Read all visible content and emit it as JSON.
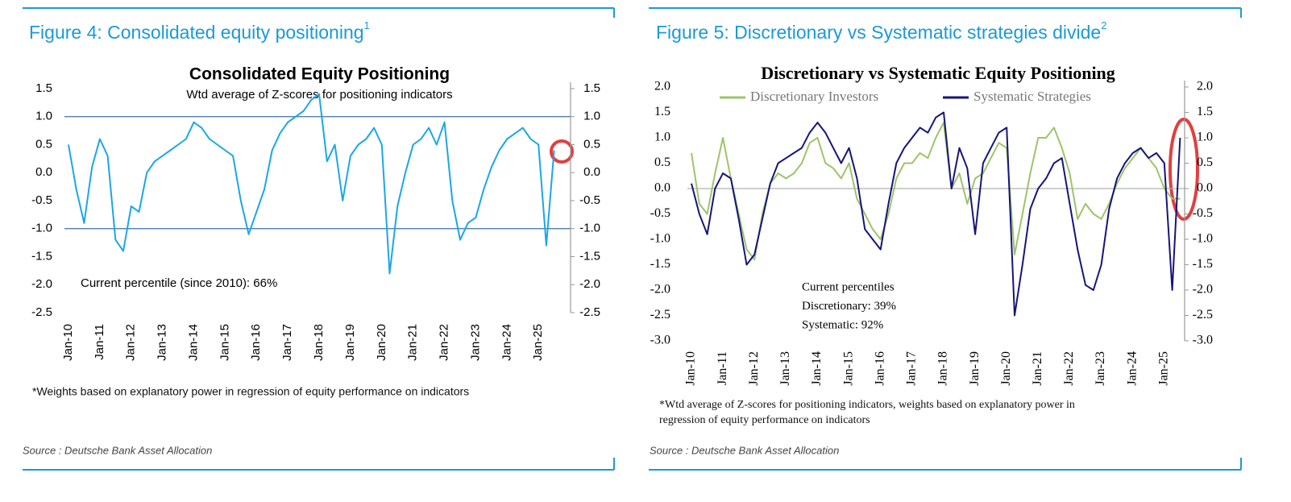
{
  "figures": [
    {
      "heading": "Figure 4: Consolidated equity positioning",
      "heading_sup": "1",
      "footnote": "*Weights based on explanatory power in regression of equity performance on indicators",
      "source": "Source : Deutsche Bank Asset Allocation"
    },
    {
      "heading": "Figure 5: Discretionary vs Systematic strategies divide",
      "heading_sup": "2",
      "footnote": [
        "*Wtd average of Z-scores for positioning indicators, weights based on explanatory power in",
        "regression of equity performance on indicators"
      ],
      "source": "Source : Deutsche Bank Asset Allocation"
    }
  ],
  "chart_data": [
    {
      "type": "line",
      "title": "Consolidated Equity Positioning",
      "subtitle": "Wtd average of Z-scores for positioning indicators",
      "annotations": [
        "Current percentile (since 2010): 66%"
      ],
      "categories": [
        "Jan-10",
        null,
        null,
        null,
        "Jan-11",
        null,
        null,
        null,
        "Jan-12",
        null,
        null,
        null,
        "Jan-13",
        null,
        null,
        null,
        "Jan-14",
        null,
        null,
        null,
        "Jan-15",
        null,
        null,
        null,
        "Jan-16",
        null,
        null,
        null,
        "Jan-17",
        null,
        null,
        null,
        "Jan-18",
        null,
        null,
        null,
        "Jan-19",
        null,
        null,
        null,
        "Jan-20",
        null,
        null,
        null,
        "Jan-21",
        null,
        null,
        null,
        "Jan-22",
        null,
        null,
        null,
        "Jan-23",
        null,
        null,
        null,
        "Jan-24",
        null,
        null,
        null,
        "Jan-25",
        null,
        null
      ],
      "values": [
        0.5,
        -0.3,
        -0.9,
        0.1,
        0.6,
        0.3,
        -1.2,
        -1.4,
        -0.6,
        -0.7,
        0.0,
        0.2,
        0.3,
        0.4,
        0.5,
        0.6,
        0.9,
        0.8,
        0.6,
        0.5,
        0.4,
        0.3,
        -0.5,
        -1.1,
        -0.7,
        -0.3,
        0.4,
        0.7,
        0.9,
        1.0,
        1.1,
        1.3,
        1.4,
        0.2,
        0.5,
        -0.5,
        0.3,
        0.5,
        0.6,
        0.8,
        0.5,
        -1.8,
        -0.6,
        0.0,
        0.5,
        0.6,
        0.8,
        0.5,
        0.9,
        -0.5,
        -1.2,
        -0.9,
        -0.8,
        -0.3,
        0.1,
        0.4,
        0.6,
        0.7,
        0.8,
        0.6,
        0.5,
        -1.3,
        0.4
      ],
      "color": "#1aa7e6",
      "ylim": [
        -2.5,
        1.5
      ],
      "yticks": [
        1.5,
        {
          "value": 1,
          "label": "1.0"
        },
        0.5,
        {
          "value": 0,
          "label": "0.0"
        },
        -0.5,
        {
          "value": -1,
          "label": "-1.0"
        },
        -1.5,
        {
          "value": -2,
          "label": "-2.0"
        },
        -2.5
      ],
      "y2lim": [
        -2.5,
        1.5
      ],
      "y2ticks": [
        1.5,
        {
          "value": 1,
          "label": "1.0"
        },
        0.5,
        {
          "value": 0,
          "label": "0.0"
        },
        -0.5,
        {
          "value": -1,
          "label": "-1.0"
        },
        -1.5,
        {
          "value": -2,
          "label": "-2.0"
        },
        -2.5
      ],
      "gridlines": [
        1,
        -1
      ],
      "gridline_color": "#3d6fa8"
    },
    {
      "type": "line",
      "title": "Discretionary  vs Systematic Equity Positioning",
      "annotations": [
        "Current percentiles",
        "Discretionary: 39%",
        "Systematic: 92%"
      ],
      "categories": [
        "Jan-10",
        null,
        null,
        null,
        "Jan-11",
        null,
        null,
        null,
        "Jan-12",
        null,
        null,
        null,
        "Jan-13",
        null,
        null,
        null,
        "Jan-14",
        null,
        null,
        null,
        "Jan-15",
        null,
        null,
        null,
        "Jan-16",
        null,
        null,
        null,
        "Jan-17",
        null,
        null,
        null,
        "Jan-18",
        null,
        null,
        null,
        "Jan-19",
        null,
        null,
        null,
        "Jan-20",
        null,
        null,
        null,
        "Jan-21",
        null,
        null,
        null,
        "Jan-22",
        null,
        null,
        null,
        "Jan-23",
        null,
        null,
        null,
        "Jan-24",
        null,
        null,
        null,
        "Jan-25",
        null,
        null
      ],
      "series": [
        {
          "name": "Discretionary Investors",
          "color": "#9dc46a",
          "values": [
            0.7,
            -0.3,
            -0.5,
            0.3,
            1.0,
            0.2,
            -0.5,
            -1.2,
            -1.4,
            -0.5,
            0.1,
            0.3,
            0.2,
            0.3,
            0.5,
            0.9,
            1.0,
            0.5,
            0.4,
            0.2,
            0.5,
            -0.2,
            -0.5,
            -0.8,
            -1.0,
            -0.5,
            0.2,
            0.5,
            0.5,
            0.7,
            0.6,
            1.0,
            1.3,
            0.0,
            0.3,
            -0.3,
            0.2,
            0.3,
            0.6,
            0.9,
            0.8,
            -1.3,
            -0.5,
            0.3,
            1.0,
            1.0,
            1.2,
            0.8,
            0.3,
            -0.6,
            -0.3,
            -0.5,
            -0.6,
            -0.3,
            0.1,
            0.4,
            0.6,
            0.8,
            0.6,
            0.4,
            0.0,
            -0.2,
            -0.2
          ]
        },
        {
          "name": "Systematic Strategies",
          "color": "#15157a",
          "values": [
            0.1,
            -0.5,
            -0.9,
            0.0,
            0.3,
            0.2,
            -0.6,
            -1.5,
            -1.3,
            -0.6,
            0.1,
            0.5,
            0.6,
            0.7,
            0.8,
            1.1,
            1.3,
            1.1,
            0.8,
            0.5,
            0.8,
            0.2,
            -0.8,
            -1.0,
            -1.2,
            -0.3,
            0.5,
            0.8,
            1.0,
            1.2,
            1.1,
            1.4,
            1.5,
            0.0,
            0.8,
            0.4,
            -0.9,
            0.5,
            0.8,
            1.1,
            1.2,
            -2.5,
            -1.5,
            -0.4,
            0.0,
            0.2,
            0.5,
            0.6,
            -0.3,
            -1.2,
            -1.9,
            -2.0,
            -1.5,
            -0.4,
            0.2,
            0.5,
            0.7,
            0.8,
            0.6,
            0.7,
            0.5,
            -2.0,
            1.0
          ]
        }
      ],
      "ylim": [
        -3,
        2
      ],
      "yticks": [
        {
          "value": 2,
          "label": "2.0"
        },
        1.5,
        {
          "value": 1,
          "label": "1.0"
        },
        0.5,
        {
          "value": 0,
          "label": "0.0"
        },
        -0.5,
        {
          "value": -1,
          "label": "-1.0"
        },
        -1.5,
        {
          "value": -2,
          "label": "-2.0"
        },
        -2.5,
        {
          "value": -3,
          "label": "-3.0"
        }
      ],
      "y2lim": [
        -3,
        2
      ],
      "y2ticks": [
        {
          "value": 2,
          "label": "2.0"
        },
        1.5,
        {
          "value": 1,
          "label": "1.0"
        },
        0.5,
        {
          "value": 0,
          "label": "0.0"
        },
        -0.5,
        {
          "value": -1,
          "label": "-1.0"
        },
        -1.5,
        {
          "value": -2,
          "label": "-2.0"
        },
        -2.5,
        {
          "value": -3,
          "label": "-3.0"
        }
      ],
      "gridlines": [
        0
      ],
      "gridline_color": "#b0b0b0"
    }
  ]
}
